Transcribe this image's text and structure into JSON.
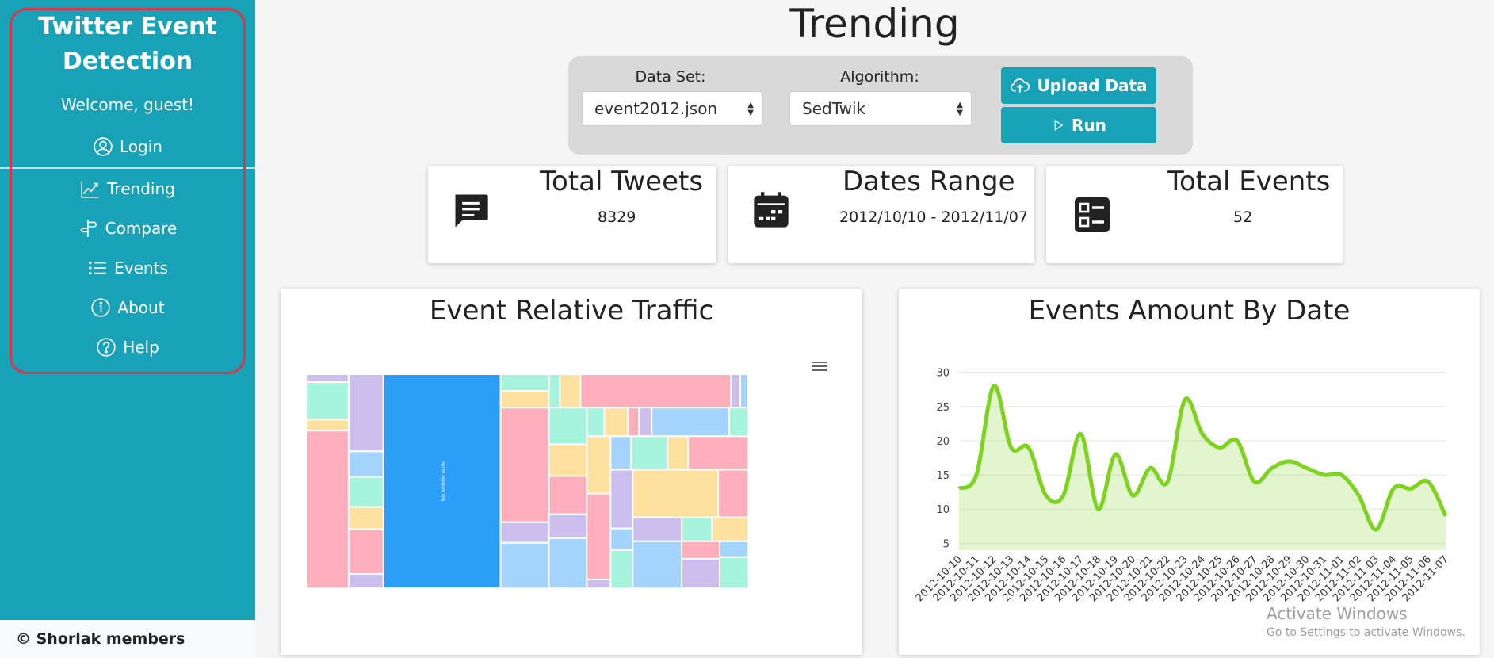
{
  "sidebar": {
    "brand_line1": "Twitter Event",
    "brand_line2": "Detection",
    "welcome": "Welcome, guest!",
    "login": "Login",
    "items": [
      {
        "label": "Trending",
        "icon": "chart-line-icon"
      },
      {
        "label": "Compare",
        "icon": "signpost-icon"
      },
      {
        "label": "Events",
        "icon": "list-icon"
      },
      {
        "label": "About",
        "icon": "info-icon"
      },
      {
        "label": "Help",
        "icon": "question-icon"
      }
    ],
    "footer": "© Shorlak members"
  },
  "page": {
    "title": "Trending"
  },
  "controls": {
    "dataset_label": "Data Set:",
    "dataset_value": "event2012.json",
    "algorithm_label": "Algorithm:",
    "algorithm_value": "SedTwik",
    "upload_label": "Upload Data",
    "run_label": "Run"
  },
  "stats": {
    "tweets": {
      "title": "Total Tweets",
      "value": "8329"
    },
    "dates": {
      "title": "Dates Range",
      "value": "2012/10/10 - 2012/11/07"
    },
    "events": {
      "title": "Total Events",
      "value": "52"
    }
  },
  "treemap": {
    "title": "Event Relative Traffic",
    "main_label": "Bob Schieffer as the",
    "menu_icon": "hamburger-menu-icon"
  },
  "linechart": {
    "title": "Events Amount By Date"
  },
  "chart_data": [
    {
      "type": "treemap",
      "title": "Event Relative Traffic",
      "labels": [
        "Bob Schieffer as the"
      ]
    },
    {
      "type": "area",
      "title": "Events Amount By Date",
      "categories": [
        "2012-10-10",
        "2012-10-11",
        "2012-10-12",
        "2012-10-13",
        "2012-10-14",
        "2012-10-15",
        "2012-10-16",
        "2012-10-17",
        "2012-10-18",
        "2012-10-19",
        "2012-10-20",
        "2012-10-21",
        "2012-10-22",
        "2012-10-23",
        "2012-10-24",
        "2012-10-25",
        "2012-10-26",
        "2012-10-27",
        "2012-10-28",
        "2012-10-29",
        "2012-10-30",
        "2012-10-31",
        "2012-11-01",
        "2012-11-02",
        "2012-11-03",
        "2012-11-04",
        "2012-11-05",
        "2012-11-06",
        "2012-11-07"
      ],
      "values": [
        13,
        15,
        28,
        19,
        19,
        12,
        12,
        21,
        10,
        18,
        12,
        16,
        14,
        26,
        21,
        19,
        20,
        14,
        16,
        17,
        16,
        15,
        15,
        12,
        7,
        13,
        13,
        14,
        9
      ],
      "yticks": [
        5,
        10,
        15,
        20,
        25,
        30
      ],
      "ylim": [
        4,
        31
      ],
      "color": "#7ed321",
      "grid": true
    }
  ],
  "watermark": {
    "line1": "Activate Windows",
    "line2": "Go to Settings to activate Windows."
  },
  "colors": {
    "accent": "#17a2b8",
    "highlight": "#dc3545"
  }
}
